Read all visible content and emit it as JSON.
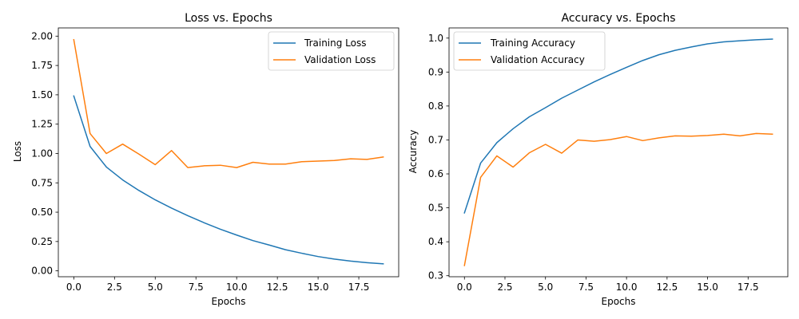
{
  "chart_data": [
    {
      "type": "line",
      "title": "Loss vs. Epochs",
      "xlabel": "Epochs",
      "ylabel": "Loss",
      "xlim": [
        -0.95,
        19.95
      ],
      "ylim": [
        -0.05,
        2.07
      ],
      "xticks": [
        0.0,
        2.5,
        5.0,
        7.5,
        10.0,
        12.5,
        15.0,
        17.5
      ],
      "xtick_labels": [
        "0.0",
        "2.5",
        "5.0",
        "7.5",
        "10.0",
        "12.5",
        "15.0",
        "17.5"
      ],
      "yticks": [
        0.0,
        0.25,
        0.5,
        0.75,
        1.0,
        1.25,
        1.5,
        1.75,
        2.0
      ],
      "ytick_labels": [
        "0.00",
        "0.25",
        "0.50",
        "0.75",
        "1.00",
        "1.25",
        "1.50",
        "1.75",
        "2.00"
      ],
      "grid": false,
      "legend_position": "upper right",
      "x": [
        0,
        1,
        2,
        3,
        4,
        5,
        6,
        7,
        8,
        9,
        10,
        11,
        12,
        13,
        14,
        15,
        16,
        17,
        18,
        19
      ],
      "series": [
        {
          "name": "Training Loss",
          "color": "#1f77b4",
          "values": [
            1.49,
            1.06,
            0.885,
            0.775,
            0.685,
            0.605,
            0.535,
            0.47,
            0.41,
            0.355,
            0.305,
            0.258,
            0.22,
            0.18,
            0.15,
            0.122,
            0.1,
            0.083,
            0.07,
            0.06
          ]
        },
        {
          "name": "Validation Loss",
          "color": "#ff7f0e",
          "values": [
            1.97,
            1.17,
            1.0,
            1.08,
            0.995,
            0.905,
            1.025,
            0.88,
            0.895,
            0.9,
            0.88,
            0.925,
            0.91,
            0.91,
            0.93,
            0.935,
            0.94,
            0.955,
            0.95,
            0.97
          ]
        }
      ]
    },
    {
      "type": "line",
      "title": "Accuracy vs. Epochs",
      "xlabel": "Epochs",
      "ylabel": "Accuracy",
      "xlim": [
        -0.95,
        19.95
      ],
      "ylim": [
        0.297,
        1.03
      ],
      "xticks": [
        0.0,
        2.5,
        5.0,
        7.5,
        10.0,
        12.5,
        15.0,
        17.5
      ],
      "xtick_labels": [
        "0.0",
        "2.5",
        "5.0",
        "7.5",
        "10.0",
        "12.5",
        "15.0",
        "17.5"
      ],
      "yticks": [
        0.3,
        0.4,
        0.5,
        0.6,
        0.7,
        0.8,
        0.9,
        1.0
      ],
      "ytick_labels": [
        "0.3",
        "0.4",
        "0.5",
        "0.6",
        "0.7",
        "0.8",
        "0.9",
        "1.0"
      ],
      "grid": false,
      "legend_position": "upper left",
      "x": [
        0,
        1,
        2,
        3,
        4,
        5,
        6,
        7,
        8,
        9,
        10,
        11,
        12,
        13,
        14,
        15,
        16,
        17,
        18,
        19
      ],
      "series": [
        {
          "name": "Training Accuracy",
          "color": "#1f77b4",
          "values": [
            0.485,
            0.632,
            0.692,
            0.733,
            0.768,
            0.795,
            0.823,
            0.847,
            0.871,
            0.893,
            0.914,
            0.934,
            0.951,
            0.964,
            0.974,
            0.983,
            0.989,
            0.992,
            0.995,
            0.997
          ]
        },
        {
          "name": "Validation Accuracy",
          "color": "#ff7f0e",
          "values": [
            0.33,
            0.59,
            0.653,
            0.62,
            0.662,
            0.687,
            0.661,
            0.7,
            0.696,
            0.701,
            0.71,
            0.698,
            0.706,
            0.712,
            0.711,
            0.713,
            0.717,
            0.712,
            0.719,
            0.717
          ]
        }
      ]
    }
  ]
}
